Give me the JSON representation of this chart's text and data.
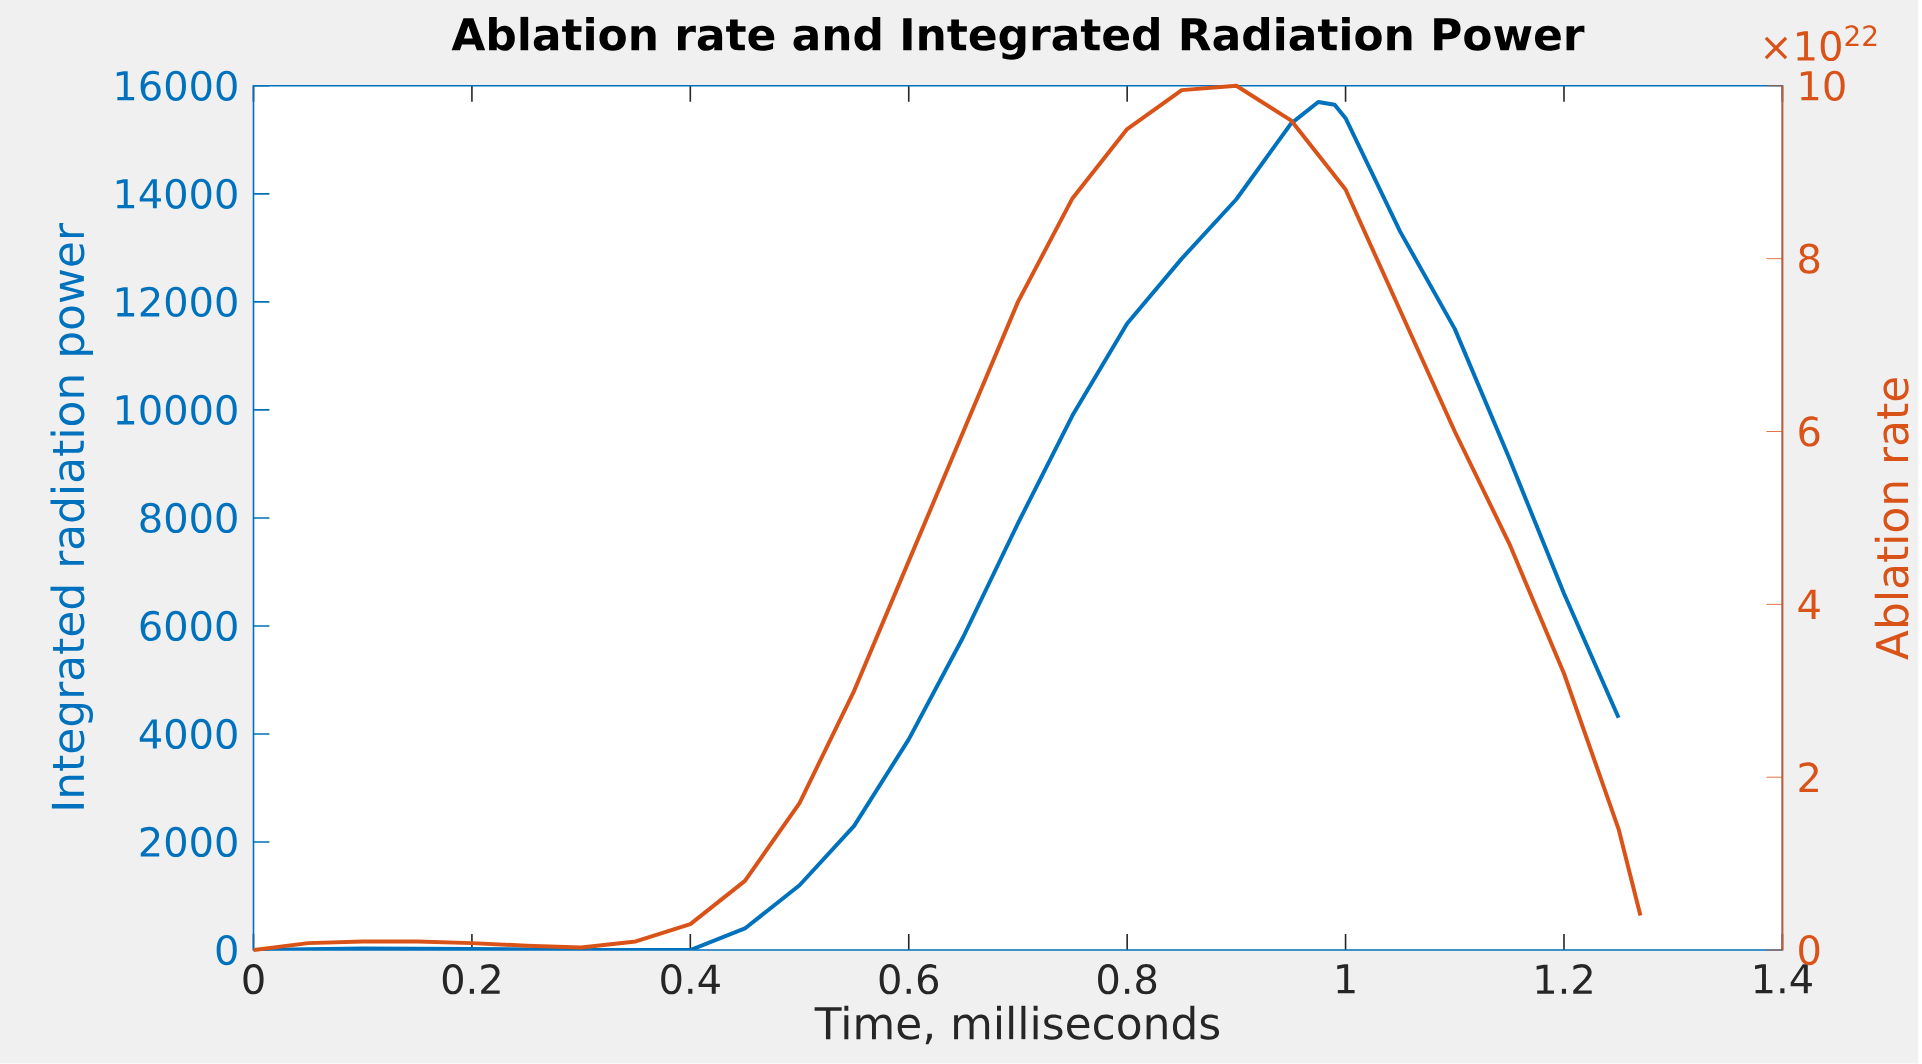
{
  "chart_data": {
    "type": "line",
    "title": "Ablation rate and Integrated Radiation Power",
    "xlabel": "Time, milliseconds",
    "ylabel": "Integrated radiation power",
    "y2label": "Ablation rate",
    "series": [
      {
        "color": "#0072bd",
        "x": [
          0,
          0.1,
          0.2,
          0.3,
          0.4,
          0.45,
          0.5,
          0.55,
          0.6,
          0.65,
          0.7,
          0.75,
          0.8,
          0.85,
          0.9,
          0.95,
          0.975,
          0.99,
          1.0,
          1.05,
          1.1,
          1.15,
          1.2,
          1.25
        ],
        "values": [
          0,
          30,
          20,
          0,
          0,
          400,
          1200,
          2300,
          3900,
          5800,
          7900,
          9900,
          11600,
          12800,
          13900,
          15300,
          15700,
          15650,
          15400,
          13300,
          11500,
          9100,
          6600,
          4300
        ]
      },
      {
        "color": "#d95319",
        "axis": "y2",
        "x": [
          0,
          0.05,
          0.1,
          0.15,
          0.2,
          0.25,
          0.3,
          0.35,
          0.4,
          0.45,
          0.5,
          0.55,
          0.6,
          0.65,
          0.7,
          0.75,
          0.8,
          0.85,
          0.9,
          0.95,
          1.0,
          1.05,
          1.1,
          1.15,
          1.2,
          1.25,
          1.27
        ],
        "values": [
          0,
          0.08,
          0.1,
          0.1,
          0.08,
          0.05,
          0.03,
          0.1,
          0.3,
          0.8,
          1.7,
          3.0,
          4.5,
          6.0,
          7.5,
          8.7,
          9.5,
          9.95,
          10.0,
          9.6,
          8.8,
          7.4,
          6.0,
          4.7,
          3.2,
          1.4,
          0.4
        ]
      }
    ],
    "xlim": [
      0,
      1.4
    ],
    "xticks": [
      0,
      0.2,
      0.4,
      0.6,
      0.8,
      1,
      1.2,
      1.4
    ],
    "ylim": [
      0,
      16000
    ],
    "yticks": [
      0,
      2000,
      4000,
      6000,
      8000,
      10000,
      12000,
      14000,
      16000
    ],
    "y2lim": [
      0,
      10
    ],
    "y2ticks": [
      0,
      2,
      4,
      6,
      8,
      10
    ],
    "annotations": [
      "×10$^{22}$"
    ]
  }
}
